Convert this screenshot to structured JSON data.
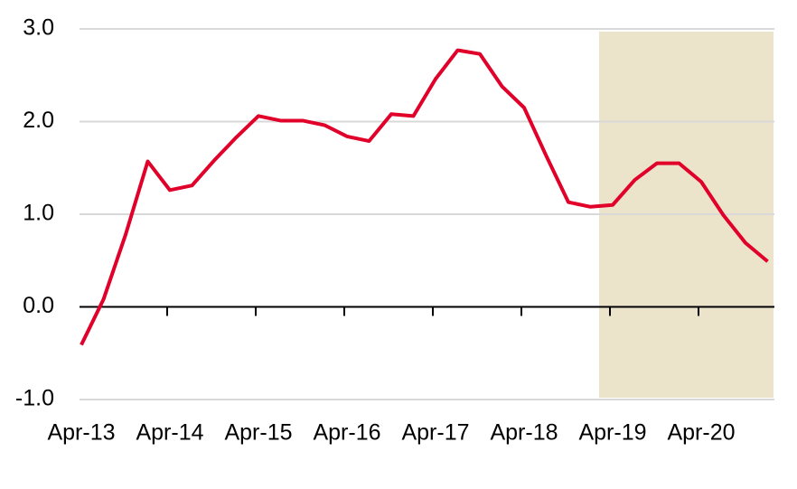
{
  "chart_data": {
    "type": "line",
    "categories": [
      "Apr-13",
      null,
      null,
      null,
      "Apr-14",
      null,
      null,
      null,
      "Apr-15",
      null,
      null,
      null,
      "Apr-16",
      null,
      null,
      null,
      "Apr-17",
      null,
      null,
      null,
      "Apr-18",
      null,
      null,
      null,
      "Apr-19",
      null,
      null,
      null,
      "Apr-20",
      null,
      null,
      null
    ],
    "series": [
      {
        "color": "#e0002a",
        "values": [
          -0.41,
          0.08,
          0.78,
          1.57,
          1.26,
          1.31,
          1.58,
          1.83,
          2.06,
          2.01,
          2.01,
          1.96,
          1.84,
          1.79,
          2.08,
          2.06,
          2.46,
          2.77,
          2.73,
          2.38,
          2.15,
          1.63,
          1.13,
          1.08,
          1.1,
          1.37,
          1.55,
          1.55,
          1.35,
          0.99,
          0.69,
          0.49
        ]
      }
    ],
    "ylim": [
      -1,
      3
    ],
    "yticks": [
      {
        "value": -1,
        "label": "-1.0"
      },
      {
        "value": 0,
        "label": "0.0"
      },
      {
        "value": 1,
        "label": "1.0"
      },
      {
        "value": 2,
        "label": "2.0"
      },
      {
        "value": 3,
        "label": "3.0"
      }
    ],
    "grid": true
  }
}
